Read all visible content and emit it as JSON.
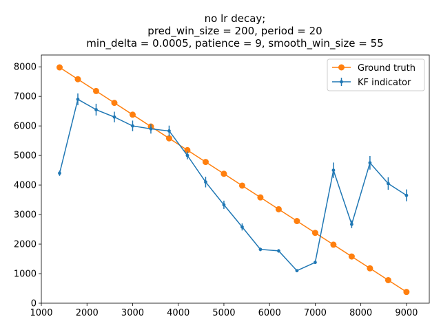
{
  "chart_data": {
    "type": "line",
    "title_lines": [
      "no lr decay;",
      "pred_win_size = 200, period = 20",
      "min_delta = 0.0005, patience = 9, smooth_win_size = 55"
    ],
    "xlabel": "",
    "ylabel": "",
    "xlim": [
      1000,
      9500
    ],
    "ylim": [
      0,
      8400
    ],
    "xticks": [
      1000,
      2000,
      3000,
      4000,
      5000,
      6000,
      7000,
      8000,
      9000
    ],
    "yticks": [
      0,
      1000,
      2000,
      3000,
      4000,
      5000,
      6000,
      7000,
      8000
    ],
    "grid": false,
    "legend_position": "upper-right",
    "series": [
      {
        "name": "Ground truth",
        "color": "#ff7f0e",
        "marker": "circle",
        "x": [
          1400,
          1800,
          2200,
          2600,
          3000,
          3400,
          3800,
          4200,
          4600,
          5000,
          5400,
          5800,
          6200,
          6600,
          7000,
          7400,
          7800,
          8200,
          8600,
          9000
        ],
        "y": [
          7980,
          7580,
          7180,
          6780,
          6380,
          5980,
          5580,
          5180,
          4780,
          4380,
          3980,
          3580,
          3180,
          2780,
          2380,
          1980,
          1580,
          1180,
          780,
          380
        ]
      },
      {
        "name": "KF indicator",
        "color": "#1f77b4",
        "marker": "point",
        "x": [
          1400,
          1800,
          2200,
          2600,
          3000,
          3400,
          3800,
          4200,
          4600,
          5000,
          5400,
          5800,
          6200,
          6600,
          7000,
          7400,
          7800,
          8200,
          8600,
          9000
        ],
        "y": [
          4400,
          6900,
          6550,
          6300,
          6000,
          5900,
          5830,
          5000,
          4100,
          3330,
          2580,
          1820,
          1770,
          1100,
          1380,
          4500,
          2670,
          4750,
          4050,
          3650
        ],
        "err": [
          90,
          200,
          200,
          180,
          180,
          160,
          180,
          130,
          180,
          140,
          120,
          60,
          60,
          40,
          50,
          260,
          130,
          230,
          210,
          200
        ]
      }
    ]
  }
}
